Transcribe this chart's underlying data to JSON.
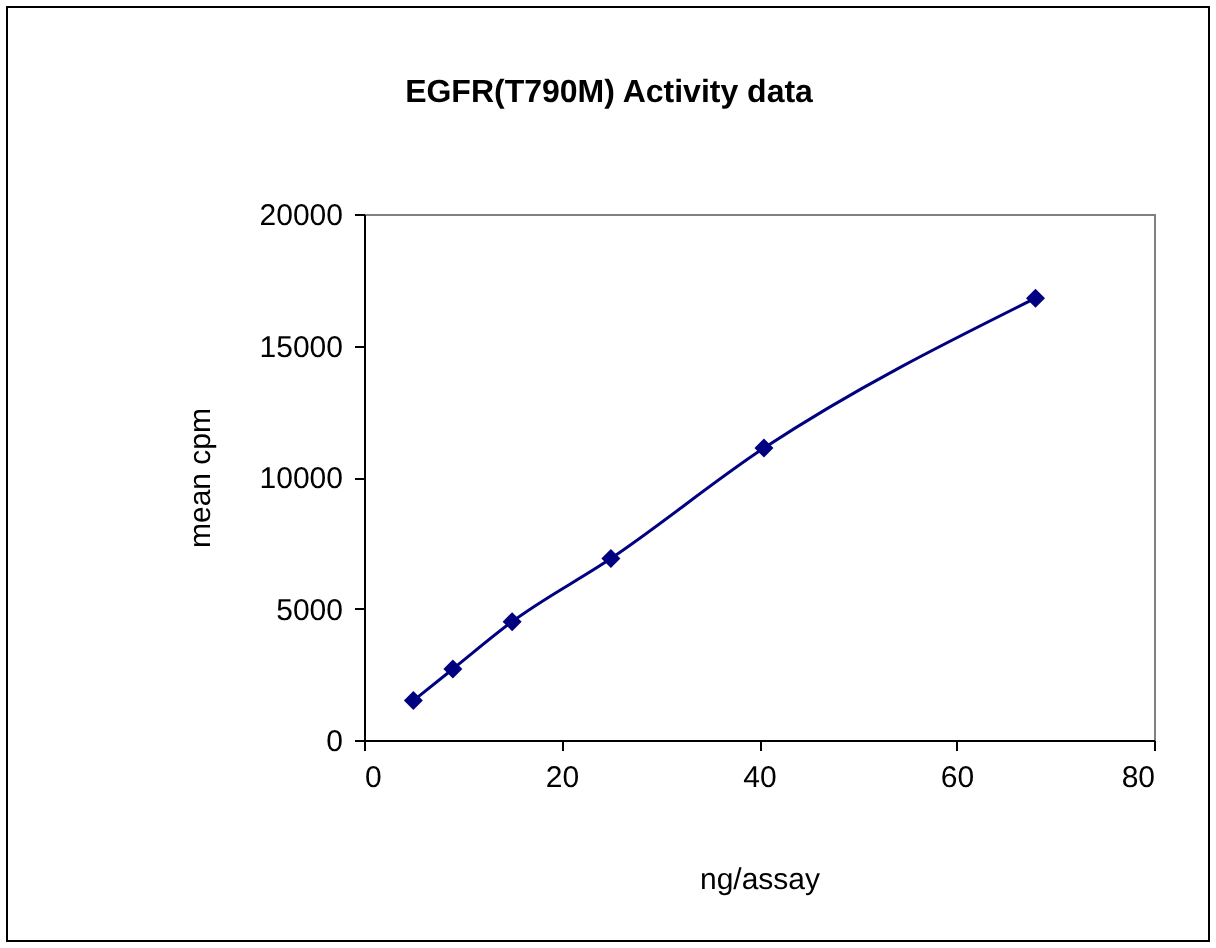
{
  "chart_data": {
    "type": "line",
    "title": "EGFR(T790M) Activity data",
    "xlabel": "ng/assay",
    "ylabel": "mean cpm",
    "x": [
      5,
      9,
      15,
      25,
      40.5,
      68
    ],
    "series": [
      {
        "color": "#000080",
        "values": [
          1500,
          2700,
          4500,
          6900,
          11100,
          16800
        ]
      }
    ],
    "xlim": [
      0,
      80
    ],
    "xticks": [
      0,
      20,
      40,
      60,
      80
    ],
    "ylim": [
      0,
      20000
    ],
    "yticks": [
      0,
      5000,
      10000,
      15000,
      20000
    ],
    "grid": false,
    "legend": false,
    "marker": "diamond",
    "line_style": "solid"
  }
}
